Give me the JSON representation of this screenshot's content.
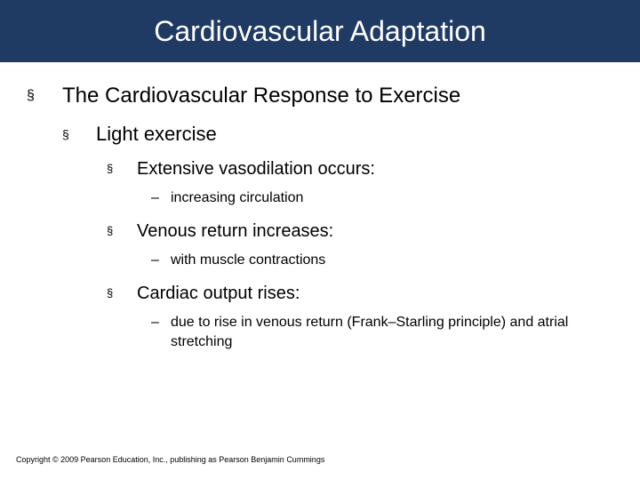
{
  "title": "Cardiovascular Adaptation",
  "title_bg": "#1f3a63",
  "title_color": "#ffffff",
  "bullet_glyph_square": "§",
  "bullet_glyph_dash": "–",
  "level1": {
    "text": "The Cardiovascular Response to Exercise"
  },
  "level2": {
    "text": "Light exercise"
  },
  "level3": [
    {
      "text": "Extensive vasodilation occurs:",
      "sub": "increasing circulation"
    },
    {
      "text": "Venous return increases:",
      "sub": "with muscle contractions"
    },
    {
      "text": "Cardiac output rises:",
      "sub": "due to rise in venous return (Frank–Starling principle) and atrial stretching"
    }
  ],
  "copyright": "Copyright © 2009 Pearson Education, Inc., publishing as Pearson Benjamin Cummings"
}
